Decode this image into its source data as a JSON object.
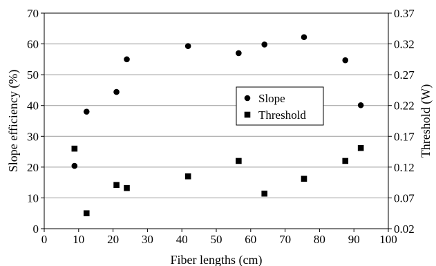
{
  "chart_data": {
    "type": "scatter",
    "xlabel": "Fiber lengths (cm)",
    "ylabel": "Slope efficiency (%)",
    "y2label": "Threshold (W)",
    "xlim": [
      0,
      100
    ],
    "ylim": [
      0,
      70
    ],
    "y2lim": [
      0.02,
      0.37
    ],
    "x_ticks": [
      "0",
      "10",
      "20",
      "30",
      "40",
      "50",
      "60",
      "70",
      "80",
      "90",
      "100"
    ],
    "y_ticks": [
      "0",
      "10",
      "20",
      "30",
      "40",
      "50",
      "60",
      "70"
    ],
    "y2_ticks": [
      "0.02",
      "0.07",
      "0.12",
      "0.17",
      "0.22",
      "0.27",
      "0.32",
      "0.37"
    ],
    "grid": true,
    "legend_position": "center-right",
    "series": [
      {
        "name": "Slope",
        "marker": "circle",
        "axis": "left",
        "color": "#000000",
        "points": [
          {
            "x": 8.8,
            "y": 20.4
          },
          {
            "x": 12.3,
            "y": 38
          },
          {
            "x": 21,
            "y": 44.4
          },
          {
            "x": 24,
            "y": 55
          },
          {
            "x": 41.8,
            "y": 59.3
          },
          {
            "x": 56.5,
            "y": 57
          },
          {
            "x": 64,
            "y": 59.8
          },
          {
            "x": 75.5,
            "y": 62.2
          },
          {
            "x": 87.5,
            "y": 54.7
          },
          {
            "x": 92,
            "y": 40.1
          }
        ]
      },
      {
        "name": "Threshold",
        "marker": "square",
        "axis": "right",
        "color": "#000000",
        "points": [
          {
            "x": 8.8,
            "y": 0.15
          },
          {
            "x": 12.3,
            "y": 0.045
          },
          {
            "x": 21,
            "y": 0.091
          },
          {
            "x": 24,
            "y": 0.086
          },
          {
            "x": 41.8,
            "y": 0.105
          },
          {
            "x": 56.5,
            "y": 0.13
          },
          {
            "x": 64,
            "y": 0.077
          },
          {
            "x": 75.5,
            "y": 0.101
          },
          {
            "x": 87.5,
            "y": 0.13
          },
          {
            "x": 92,
            "y": 0.151
          }
        ]
      }
    ]
  }
}
